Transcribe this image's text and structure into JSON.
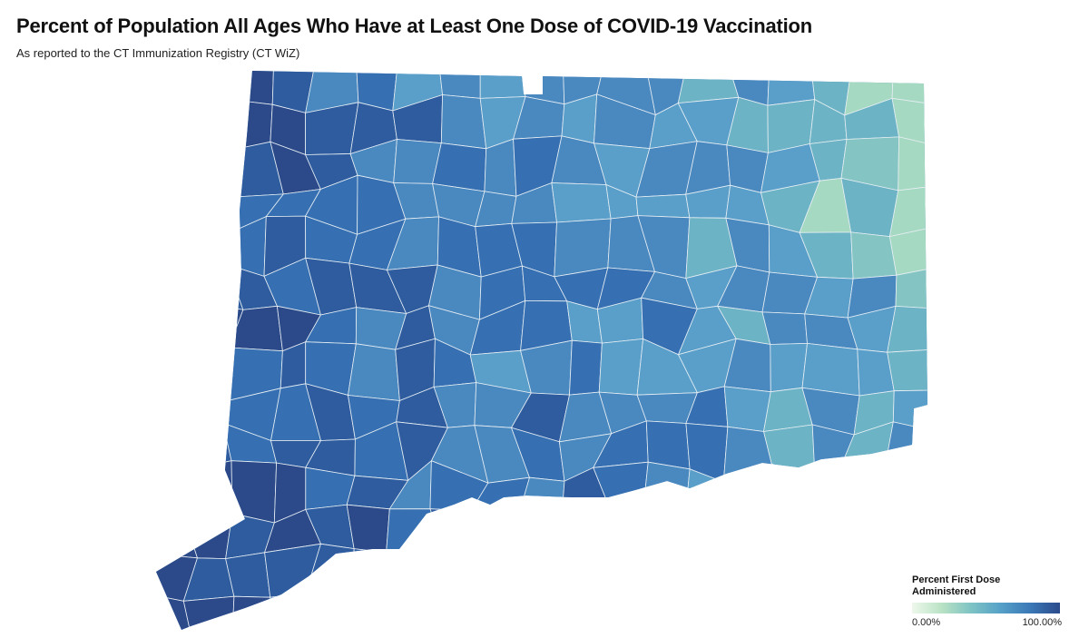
{
  "header": {
    "title": "Percent of Population All Ages Who Have at Least One Dose of COVID-19 Vaccination",
    "subtitle": "As reported to the CT Immunization Registry (CT WiZ)"
  },
  "legend": {
    "title": "Percent First Dose Administered",
    "min_label": "0.00%",
    "max_label": "100.00%",
    "colors": [
      "#eef8ec",
      "#b9e2c4",
      "#7ec3c4",
      "#55a0c8",
      "#3b78b6",
      "#2c4b8c"
    ]
  },
  "map": {
    "border_color": "#e6eef3",
    "fill_levels": [
      "#a6d9c2",
      "#84c5c3",
      "#6cb3c5",
      "#5a9fca",
      "#4a88c0",
      "#3670b2",
      "#2e5c9f",
      "#2c4a8a"
    ]
  }
}
